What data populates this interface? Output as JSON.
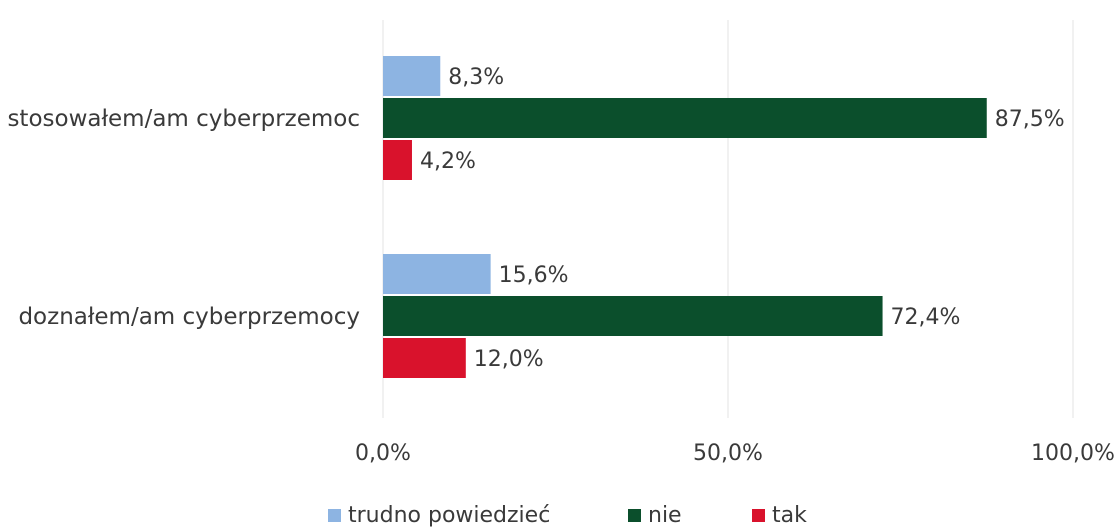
{
  "chart_data": {
    "type": "bar",
    "orientation": "horizontal",
    "categories": [
      "stosowałem/am cyberprzemoc",
      "doznałem/am cyberprzemocy"
    ],
    "series": [
      {
        "name": "trudno powiedzieć",
        "color": "#8db4e2",
        "values": [
          8.3,
          15.6
        ],
        "labels": [
          "8,3%",
          "15,6%"
        ]
      },
      {
        "name": "nie",
        "color": "#0b4f2c",
        "values": [
          87.5,
          72.4
        ],
        "labels": [
          "87,5%",
          "72,4%"
        ]
      },
      {
        "name": "tak",
        "color": "#d9122c",
        "values": [
          4.2,
          12.0
        ],
        "labels": [
          "4,2%",
          "12,0%"
        ]
      }
    ],
    "xlim": [
      0,
      100
    ],
    "x_ticks": [
      0,
      50,
      100
    ],
    "x_tick_labels": [
      "0,0%",
      "50,0%",
      "100,0%"
    ],
    "grid": true,
    "legend_position": "bottom"
  }
}
